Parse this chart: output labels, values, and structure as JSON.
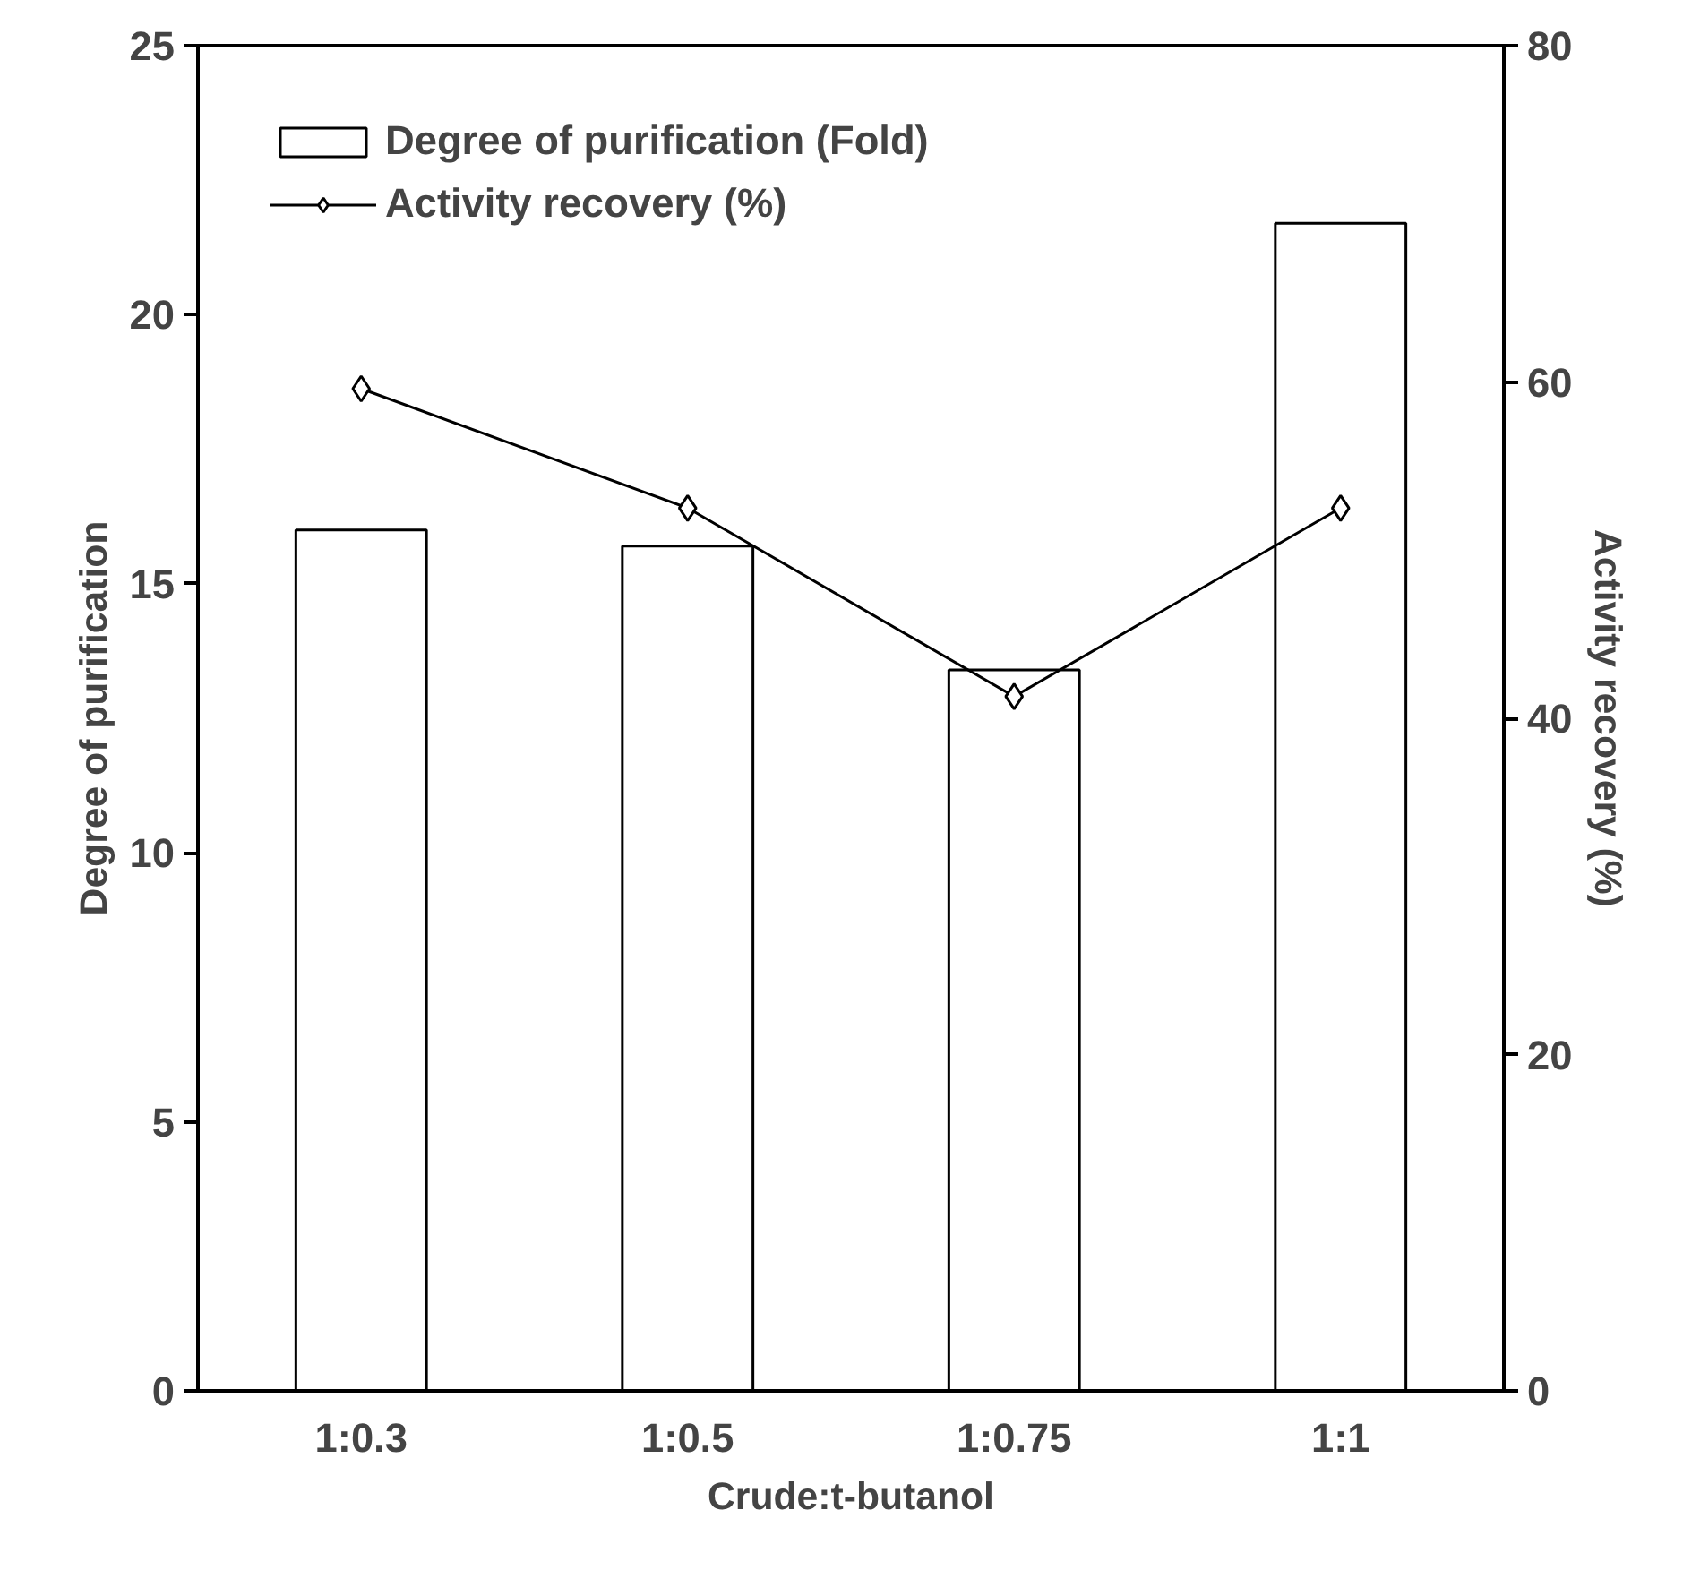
{
  "chart_data": {
    "type": "bar",
    "xlabel": "Crude:t-butanol",
    "ylabel": "Degree of purification",
    "y2label": "Activity recovery (%)",
    "categories": [
      "1:0.3",
      "1:0.5",
      "1:0.75",
      "1:1"
    ],
    "series": [
      {
        "name": "Degree of purification (Fold)",
        "color": "#ffffff",
        "values": [
          16.0,
          15.7,
          13.4,
          21.7
        ]
      },
      {
        "name": "Activity recovery (%)",
        "type": "line",
        "axis": "y2",
        "marker": "diamond",
        "color": "#000000",
        "values": [
          59.6,
          52.5,
          41.3,
          52.5
        ]
      }
    ],
    "ylim": [
      0,
      25
    ],
    "yticks": [
      0,
      5,
      10,
      15,
      20,
      25
    ],
    "y2lim": [
      0,
      80
    ],
    "y2ticks": [
      0,
      20,
      40,
      60,
      80
    ],
    "grid": false,
    "legend": "top left"
  }
}
